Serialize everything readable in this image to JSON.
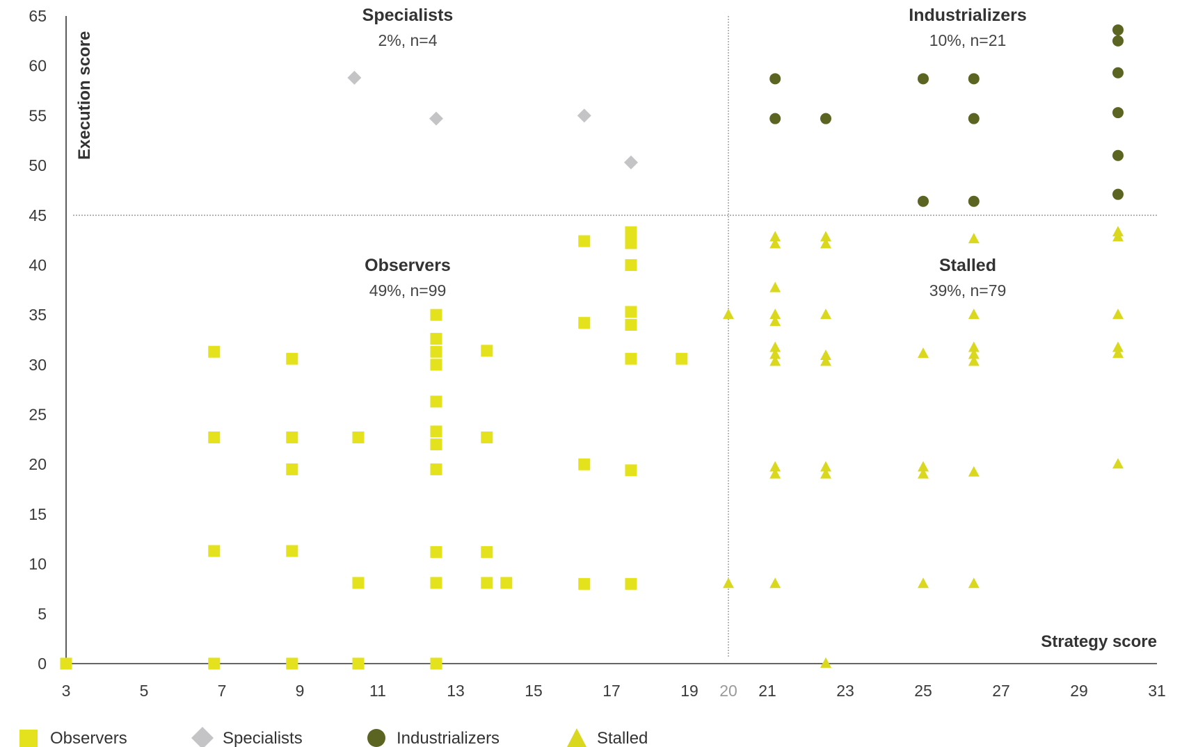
{
  "chart_data": {
    "type": "scatter",
    "xlabel": "Strategy score",
    "ylabel": "Execution score",
    "xlim": [
      3,
      31
    ],
    "ylim": [
      0,
      65
    ],
    "x_ticks": [
      "3",
      "5",
      "7",
      "9",
      "11",
      "13",
      "15",
      "17",
      "19",
      "20",
      "21",
      "23",
      "25",
      "27",
      "29",
      "31"
    ],
    "y_ticks": [
      "0",
      "5",
      "10",
      "15",
      "20",
      "25",
      "30",
      "35",
      "40",
      "45",
      "50",
      "55",
      "60",
      "65"
    ],
    "thresholds": {
      "x": 20,
      "y": 45
    },
    "quadrants": [
      {
        "name": "Specialists",
        "stat": "2%, n=4"
      },
      {
        "name": "Industrializers",
        "stat": "10%, n=21"
      },
      {
        "name": "Observers",
        "stat": "49%, n=99"
      },
      {
        "name": "Stalled",
        "stat": "39%, n=79"
      }
    ],
    "legend_position": "bottom-left",
    "series": [
      {
        "name": "Observers",
        "marker": "square",
        "color": "#e3e21c",
        "points": [
          [
            3,
            0
          ],
          [
            6.8,
            0
          ],
          [
            8.8,
            0
          ],
          [
            10.5,
            0
          ],
          [
            12.5,
            0
          ],
          [
            6.8,
            11.3
          ],
          [
            6.8,
            22.7
          ],
          [
            6.8,
            31.3
          ],
          [
            8.8,
            11.3
          ],
          [
            8.8,
            19.5
          ],
          [
            8.8,
            22.7
          ],
          [
            8.8,
            30.6
          ],
          [
            10.5,
            8.1
          ],
          [
            10.5,
            22.7
          ],
          [
            12.5,
            8.1
          ],
          [
            12.5,
            11.2
          ],
          [
            12.5,
            19.5
          ],
          [
            12.5,
            22
          ],
          [
            12.5,
            23.3
          ],
          [
            12.5,
            26.3
          ],
          [
            12.5,
            30
          ],
          [
            12.5,
            31.3
          ],
          [
            12.5,
            32.6
          ],
          [
            12.5,
            35
          ],
          [
            13.8,
            8.1
          ],
          [
            13.8,
            11.2
          ],
          [
            13.8,
            22.7
          ],
          [
            13.8,
            31.4
          ],
          [
            14.3,
            8.1
          ],
          [
            16.3,
            8
          ],
          [
            16.3,
            20
          ],
          [
            16.3,
            34.2
          ],
          [
            16.3,
            42.4
          ],
          [
            17.5,
            8
          ],
          [
            17.5,
            19.4
          ],
          [
            17.5,
            30.6
          ],
          [
            17.5,
            34
          ],
          [
            17.5,
            35.3
          ],
          [
            17.5,
            40
          ],
          [
            17.5,
            42.2
          ],
          [
            17.5,
            43.3
          ],
          [
            18.8,
            30.6
          ]
        ]
      },
      {
        "name": "Specialists",
        "marker": "diamond",
        "color": "#c4c4c7",
        "points": [
          [
            10.4,
            58.8
          ],
          [
            12.5,
            54.7
          ],
          [
            16.3,
            55
          ],
          [
            17.5,
            50.3
          ]
        ]
      },
      {
        "name": "Industrializers",
        "marker": "circle",
        "color": "#5c6421",
        "points": [
          [
            21.2,
            58.7
          ],
          [
            21.2,
            54.7
          ],
          [
            22.5,
            54.7
          ],
          [
            25,
            58.7
          ],
          [
            25,
            46.4
          ],
          [
            26.3,
            58.7
          ],
          [
            26.3,
            54.7
          ],
          [
            26.3,
            46.4
          ],
          [
            30,
            63.6
          ],
          [
            30,
            62.5
          ],
          [
            30,
            59.3
          ],
          [
            30,
            55.3
          ],
          [
            30,
            51
          ],
          [
            30,
            47.1
          ]
        ]
      },
      {
        "name": "Stalled",
        "marker": "triangle",
        "color": "#d9d81f",
        "points": [
          [
            20,
            8
          ],
          [
            20,
            35
          ],
          [
            21.2,
            8
          ],
          [
            21.2,
            19
          ],
          [
            21.2,
            19.7
          ],
          [
            21.2,
            30.3
          ],
          [
            21.2,
            31
          ],
          [
            21.2,
            31.7
          ],
          [
            21.2,
            34.3
          ],
          [
            21.2,
            35
          ],
          [
            21.2,
            37.7
          ],
          [
            21.2,
            42.1
          ],
          [
            21.2,
            42.8
          ],
          [
            22.5,
            0
          ],
          [
            22.5,
            19
          ],
          [
            22.5,
            19.7
          ],
          [
            22.5,
            30.3
          ],
          [
            22.5,
            30.9
          ],
          [
            22.5,
            35
          ],
          [
            22.5,
            42.1
          ],
          [
            22.5,
            42.8
          ],
          [
            25,
            8
          ],
          [
            25,
            19
          ],
          [
            25,
            19.7
          ],
          [
            25,
            31.1
          ],
          [
            26.3,
            8
          ],
          [
            26.3,
            19.2
          ],
          [
            26.3,
            30.3
          ],
          [
            26.3,
            31
          ],
          [
            26.3,
            31.7
          ],
          [
            26.3,
            35
          ],
          [
            26.3,
            42.6
          ],
          [
            30,
            20
          ],
          [
            30,
            31.1
          ],
          [
            30,
            31.7
          ],
          [
            30,
            35
          ],
          [
            30,
            42.8
          ],
          [
            30,
            43.3
          ]
        ]
      }
    ]
  }
}
